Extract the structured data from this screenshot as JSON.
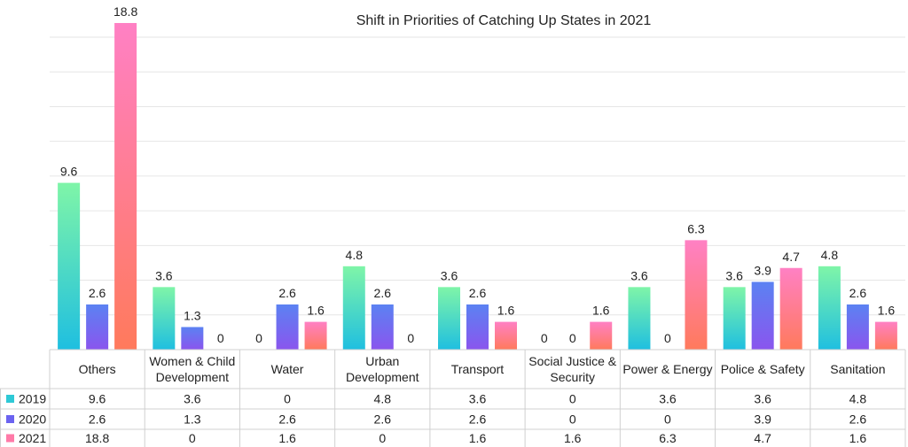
{
  "chart_data": {
    "type": "bar",
    "title": "Shift in Priorities of Catching Up States in 2021",
    "xlabel": "",
    "ylabel": "",
    "ylim": [
      0,
      18.8
    ],
    "grid": true,
    "legend": "data-table-left",
    "categories": [
      [
        "Others"
      ],
      [
        "Women & Child",
        "Development"
      ],
      [
        "Water"
      ],
      [
        "Urban",
        "Development"
      ],
      [
        "Transport"
      ],
      [
        "Social Justice &",
        "Security"
      ],
      [
        "Power & Energy"
      ],
      [
        "Police & Safety"
      ],
      [
        "Sanitation"
      ]
    ],
    "series": [
      {
        "name": "2019",
        "color": "#2ec9d6",
        "values": [
          9.6,
          3.6,
          0,
          4.8,
          3.6,
          0,
          3.6,
          3.6,
          4.8
        ]
      },
      {
        "name": "2020",
        "color": "#6b63f0",
        "values": [
          2.6,
          1.3,
          2.6,
          2.6,
          2.6,
          0,
          0,
          3.9,
          2.6
        ]
      },
      {
        "name": "2021",
        "color": "#ff7aa8",
        "values": [
          18.8,
          0,
          1.6,
          0,
          1.6,
          1.6,
          6.3,
          4.7,
          1.6
        ]
      }
    ]
  }
}
